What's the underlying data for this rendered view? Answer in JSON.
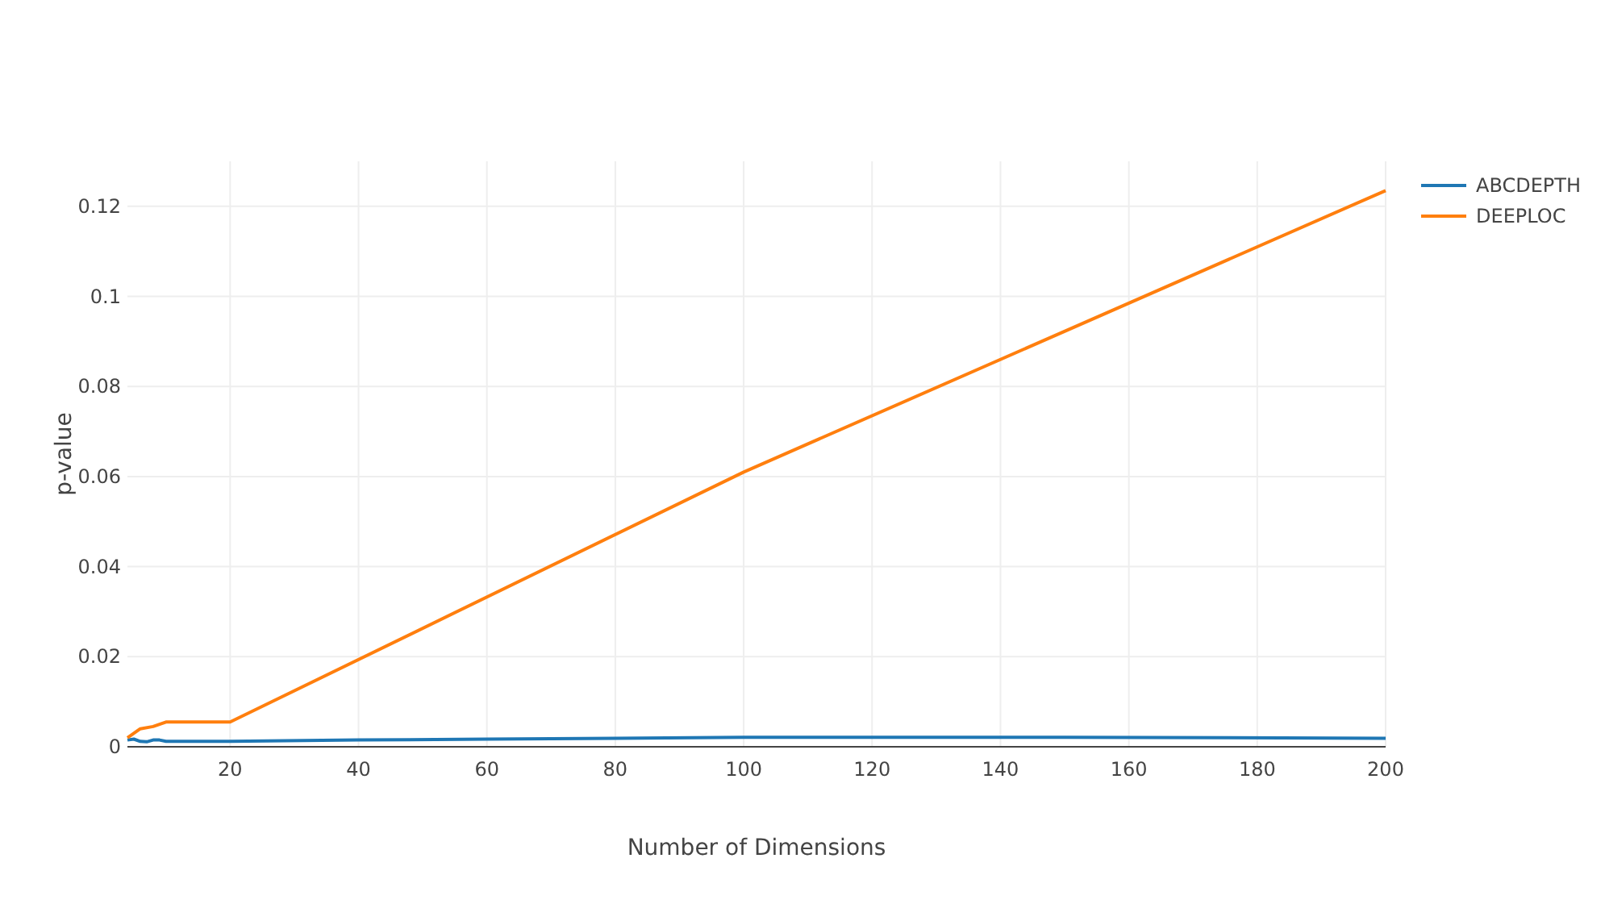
{
  "chart_data": {
    "type": "line",
    "xlabel": "Number of Dimensions",
    "ylabel": "p-value",
    "xlim": [
      4,
      200
    ],
    "xticks": [
      20,
      40,
      60,
      80,
      100,
      120,
      140,
      160,
      180,
      200
    ],
    "ylim": [
      0,
      0.13
    ],
    "yticks": [
      0,
      0.02,
      0.04,
      0.06,
      0.08,
      0.1,
      0.12
    ],
    "grid": true,
    "legend": "top right",
    "line_style": "solid",
    "series": [
      {
        "name": "ABCDEPTH",
        "color": "#1f77b4",
        "x": [
          4,
          5,
          6,
          7,
          8,
          9,
          10,
          20,
          40,
          60,
          80,
          100,
          110,
          150,
          200
        ],
        "values": [
          0.0015,
          0.0017,
          0.0012,
          0.0011,
          0.0015,
          0.0015,
          0.0012,
          0.0012,
          0.0015,
          0.0017,
          0.0019,
          0.0021,
          0.0021,
          0.0021,
          0.0019
        ]
      },
      {
        "name": "DEEPLOC",
        "color": "#ff7f0e",
        "x": [
          4,
          6,
          8,
          10,
          20,
          100,
          200
        ],
        "values": [
          0.002,
          0.004,
          0.0045,
          0.0055,
          0.0055,
          0.061,
          0.1235
        ]
      }
    ]
  }
}
